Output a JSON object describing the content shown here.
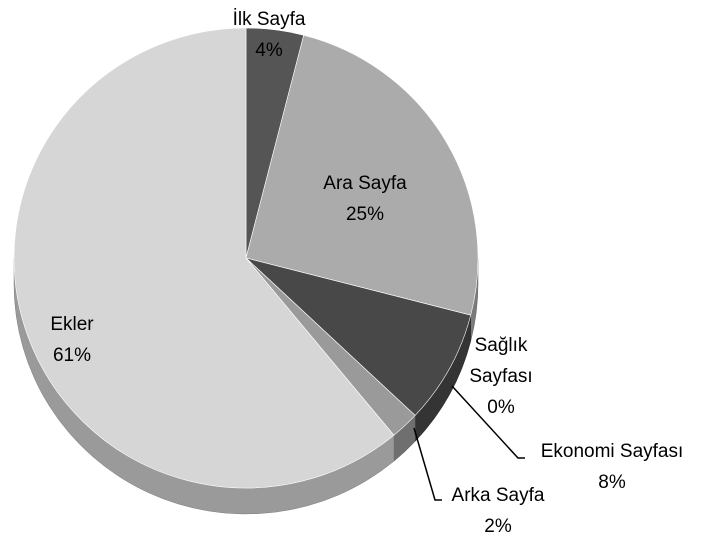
{
  "chart_data": {
    "type": "pie",
    "categories": [
      "İlk Sayfa",
      "Ara Sayfa",
      "Sağlık Sayfası",
      "Ekonomi Sayfası",
      "Arka Sayfa",
      "Ekler"
    ],
    "values": [
      4,
      25,
      0,
      8,
      2,
      61
    ],
    "value_labels": [
      "4%",
      "25%",
      "0%",
      "8%",
      "2%",
      "61%"
    ],
    "colors": [
      "#555555",
      "#ababab",
      "#6e6e6e",
      "#484848",
      "#9a9a9a",
      "#d6d6d6"
    ]
  }
}
